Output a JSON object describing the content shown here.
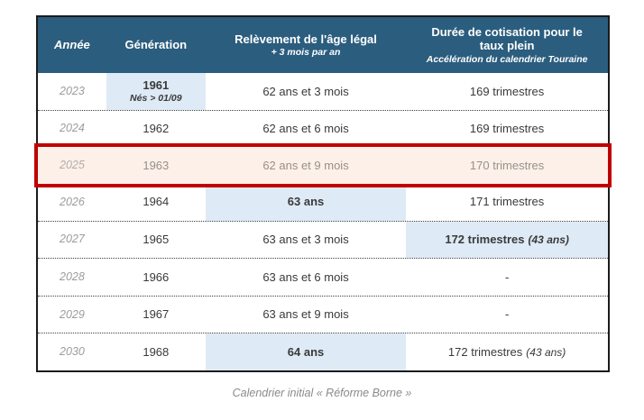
{
  "table": {
    "header": {
      "col_year": "Année",
      "col_generation": "Génération",
      "col_age_line1": "Relèvement de l'âge légal",
      "col_age_line2": "+ 3 mois par an",
      "col_duration_line1": "Durée de cotisation pour le taux plein",
      "col_duration_line2": "Accélération du calendrier Touraine"
    },
    "rows": [
      {
        "year": "2023",
        "generation": "1961",
        "generation_note": "Nés > 01/09",
        "age": "62 ans et 3 mois",
        "duration": "169 trimestres",
        "duration_note": "",
        "gen_highlight": true,
        "gen_bold": true
      },
      {
        "year": "2024",
        "generation": "1962",
        "generation_note": "",
        "age": "62 ans et 6 mois",
        "duration": "169 trimestres",
        "duration_note": ""
      },
      {
        "year": "2025",
        "generation": "1963",
        "generation_note": "",
        "age": "62 ans et 9 mois",
        "duration": "170 trimestres",
        "duration_note": "",
        "selected": true
      },
      {
        "year": "2026",
        "generation": "1964",
        "generation_note": "",
        "age": "63 ans",
        "duration": "171 trimestres",
        "duration_note": "",
        "age_highlight": true,
        "age_bold": true
      },
      {
        "year": "2027",
        "generation": "1965",
        "generation_note": "",
        "age": "63 ans et 3 mois",
        "duration": "172 trimestres",
        "duration_note": "(43 ans)",
        "dur_highlight": true,
        "dur_bold": true
      },
      {
        "year": "2028",
        "generation": "1966",
        "generation_note": "",
        "age": "63 ans et 6 mois",
        "duration": "-",
        "duration_note": ""
      },
      {
        "year": "2029",
        "generation": "1967",
        "generation_note": "",
        "age": "63 ans et 9 mois",
        "duration": "-",
        "duration_note": ""
      },
      {
        "year": "2030",
        "generation": "1968",
        "generation_note": "",
        "age": "64 ans",
        "duration": "172 trimestres",
        "duration_note": "(43 ans)",
        "age_highlight": true,
        "age_bold": true
      }
    ]
  },
  "caption": "Calendrier initial « Réforme Borne »",
  "colors": {
    "header_bg": "#2B5D7E",
    "header_text": "#FFFFFF",
    "highlight_cell_bg": "#DEEAF6",
    "selected_row_bg": "#FCF0E9",
    "selected_row_border": "#C00000",
    "year_text": "#9C9C9C",
    "body_text": "#3A3A3A",
    "muted_text": "#97918A",
    "caption_text": "#8A8A8A"
  },
  "chart_data": {
    "type": "table",
    "caption": "Calendrier initial « Réforme Borne »",
    "columns": [
      "Année",
      "Génération",
      "Relèvement de l'âge légal (+ 3 mois par an)",
      "Durée de cotisation pour le taux plein (Accélération du calendrier Touraine)"
    ],
    "rows": [
      [
        "2023",
        "1961 (Nés > 01/09)",
        "62 ans et 3 mois",
        "169 trimestres"
      ],
      [
        "2024",
        "1962",
        "62 ans et 6 mois",
        "169 trimestres"
      ],
      [
        "2025",
        "1963",
        "62 ans et 9 mois",
        "170 trimestres"
      ],
      [
        "2026",
        "1964",
        "63 ans",
        "171 trimestres"
      ],
      [
        "2027",
        "1965",
        "63 ans et 3 mois",
        "172 trimestres (43 ans)"
      ],
      [
        "2028",
        "1966",
        "63 ans et 6 mois",
        "-"
      ],
      [
        "2029",
        "1967",
        "63 ans et 9 mois",
        "-"
      ],
      [
        "2030",
        "1968",
        "64 ans",
        "172 trimestres (43 ans)"
      ]
    ],
    "highlighted_row": "2025",
    "layout_hints": {
      "header_style": "dark blue background, white bold text",
      "highlighted_cells_style": "light blue background",
      "selected_row_style": "thick dark red border, pale pink background, muted gray text",
      "row_separators": "dotted"
    }
  }
}
